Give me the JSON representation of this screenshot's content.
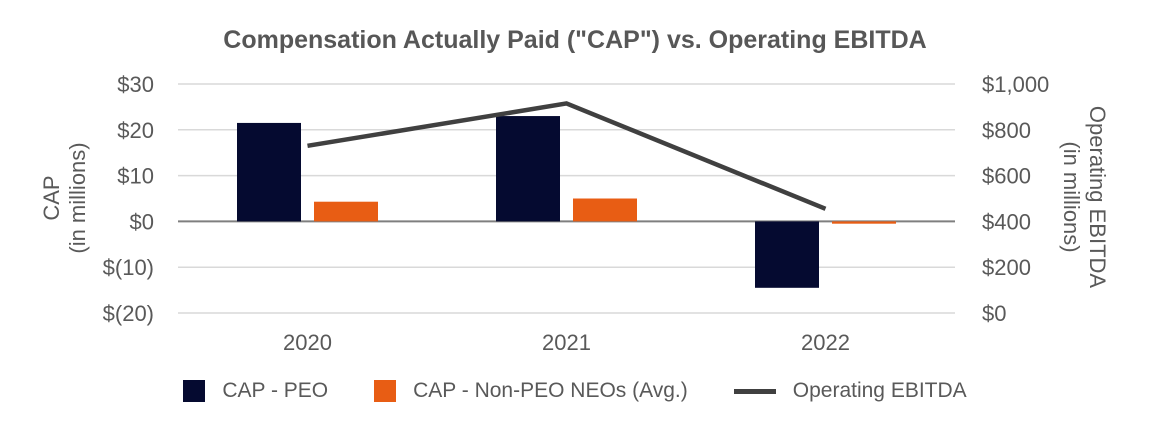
{
  "chart_data": {
    "type": "bar",
    "subtype": "combo-bar-line-dual-axis",
    "title": "Compensation Actually Paid (\"CAP\") vs. Operating EBITDA",
    "categories": [
      "2020",
      "2021",
      "2022"
    ],
    "series": [
      {
        "name": "CAP - PEO",
        "type": "bar",
        "axis": "left",
        "color": "#050A30",
        "values": [
          21.5,
          23,
          -14.5
        ]
      },
      {
        "name": "CAP - Non-PEO NEOs (Avg.)",
        "type": "bar",
        "axis": "left",
        "color": "#E85D14",
        "values": [
          4.3,
          5,
          -0.5
        ]
      },
      {
        "name": "Operating EBITDA",
        "type": "line",
        "axis": "right",
        "color": "#404040",
        "values": [
          730,
          915,
          455
        ]
      }
    ],
    "left_axis": {
      "title_line1": "CAP",
      "title_line2": "(in millions)",
      "range": [
        -20,
        30
      ],
      "tick_values": [
        30,
        20,
        10,
        0,
        -10,
        -20
      ],
      "tick_labels": [
        "$30",
        "$20",
        "$10",
        "$0",
        "$(10)",
        "$(20)"
      ]
    },
    "right_axis": {
      "title_line1": "Operating EBITDA",
      "title_line2": "(in millions)",
      "range": [
        0,
        1000
      ],
      "tick_values": [
        1000,
        800,
        600,
        400,
        200,
        0
      ],
      "tick_labels": [
        "$1,000",
        "$800",
        "$600",
        "$400",
        "$200",
        "$0"
      ]
    },
    "legend_position": "bottom",
    "grid": true,
    "gridline_color": "#D9D9D9",
    "zero_line_color": "#7F7F7F",
    "text_color": "#595959"
  }
}
